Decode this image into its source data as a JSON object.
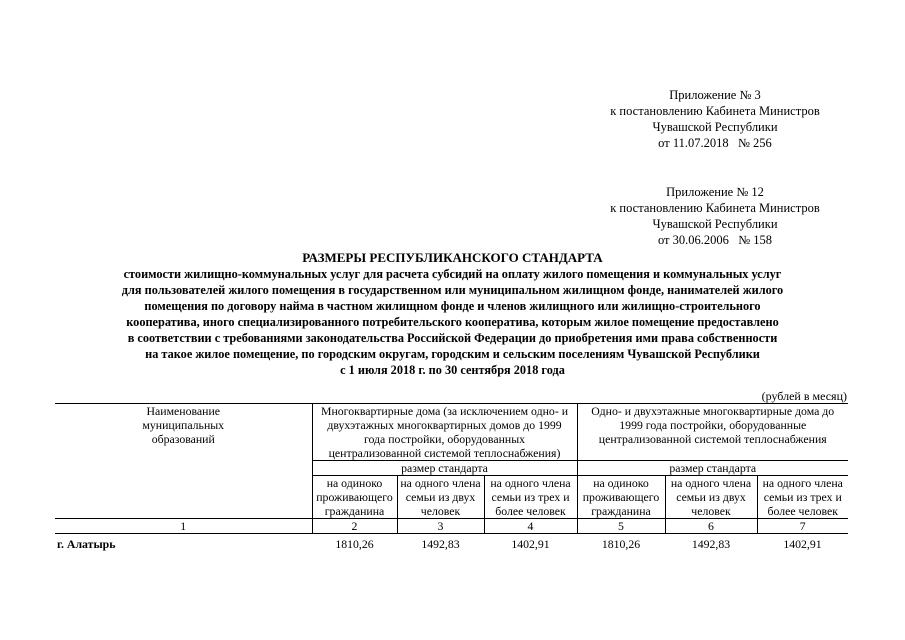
{
  "appendix1": [
    "Приложение № 3",
    "к постановлению Кабинета Министров",
    "Чувашской Республики",
    "от 11.07.2018   № 256"
  ],
  "appendix2": [
    "Приложение № 12",
    "к постановлению Кабинета Министров",
    "Чувашской Республики",
    "от 30.06.2006   № 158"
  ],
  "title": "РАЗМЕРЫ РЕСПУБЛИКАНСКОГО СТАНДАРТА",
  "subtitle": [
    "стоимости жилищно-коммунальных услуг для расчета субсидий на оплату жилого помещения и коммунальных услуг",
    "для пользователей жилого помещения в государственном или муниципальном жилищном фонде, нанимателей жилого",
    "помещения по договору найма в частном жилищном фонде и членов жилищного или жилищно-строительного",
    "кооператива, иного специализированного потребительского кооператива, которым жилое помещение предоставлено",
    "в соответствии с требованиями законодательства Российской Федерации до приобретения ими права собственности",
    "на такое жилое помещение, по городским округам, городским и сельским поселениям Чувашской Республики",
    "с 1 июля 2018 г. по 30 сентября 2018 года"
  ],
  "unit": "(рублей в месяц)",
  "table": {
    "col1": "Наименование муниципальных образований",
    "group1": "Многоквартирные дома (за исключением одно- и двухэтажных многоквартирных домов до 1999 года постройки, оборудованных централизованной системой теплоснабжения)",
    "group2": "Одно- и двухэтажные многоквартирные дома до 1999 года постройки, оборудованные централизованной системой теплоснабжения",
    "standard": "размер стандарта",
    "sub": [
      "на одиноко проживающего гражданина",
      "на одного члена семьи из двух человек",
      "на одного члена семьи из трех и более человек",
      "на одиноко проживающего гражданина",
      "на одного члена семьи из двух человек",
      "на одного члена семьи из трех и более человек"
    ],
    "numbers": [
      "1",
      "2",
      "3",
      "4",
      "5",
      "6",
      "7"
    ],
    "rows": [
      {
        "name": "г. Алатырь",
        "values": [
          "1810,26",
          "1492,83",
          "1402,91",
          "1810,26",
          "1492,83",
          "1402,91"
        ]
      }
    ]
  }
}
